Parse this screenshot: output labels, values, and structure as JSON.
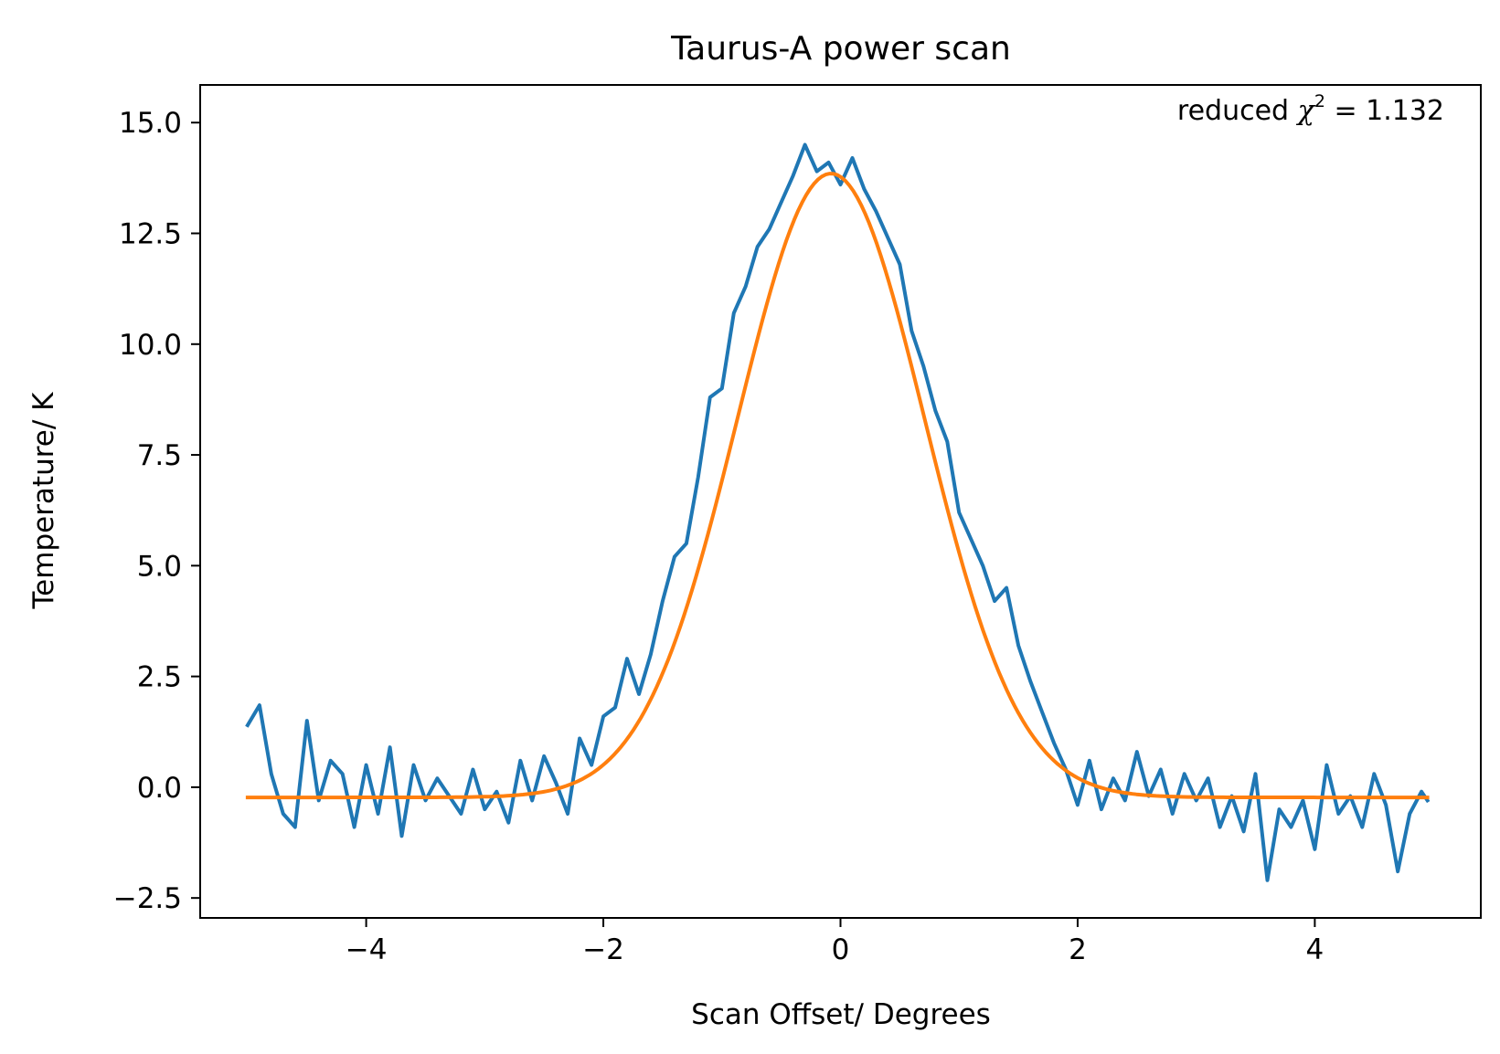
{
  "chart_data": {
    "type": "line",
    "title": "Taurus-A power scan",
    "xlabel": "Scan Offset/ Degrees",
    "ylabel": "Temperature/ K",
    "xlim": [
      -5.4,
      5.4
    ],
    "ylim": [
      -2.95,
      15.85
    ],
    "xticks": [
      -4,
      -2,
      0,
      2,
      4
    ],
    "xtick_labels": [
      "−4",
      "−2",
      "0",
      "2",
      "4"
    ],
    "yticks": [
      -2.5,
      0.0,
      2.5,
      5.0,
      7.5,
      10.0,
      12.5,
      15.0
    ],
    "ytick_labels": [
      "−2.5",
      "0.0",
      "2.5",
      "5.0",
      "7.5",
      "10.0",
      "12.5",
      "15.0"
    ],
    "grid": false,
    "annotation": {
      "prefix": "reduced ",
      "symbol": "χ",
      "superscript": "2",
      "suffix": " = 1.132",
      "color": "#008000",
      "placement": "top-right"
    },
    "series": [
      {
        "kind": "data",
        "color": "#1f77b4",
        "x": [
          -5.0,
          -4.9,
          -4.8,
          -4.7,
          -4.6,
          -4.5,
          -4.4,
          -4.3,
          -4.2,
          -4.1,
          -4.0,
          -3.9,
          -3.8,
          -3.7,
          -3.6,
          -3.5,
          -3.4,
          -3.3,
          -3.2,
          -3.1,
          -3.0,
          -2.9,
          -2.8,
          -2.7,
          -2.6,
          -2.5,
          -2.4,
          -2.3,
          -2.2,
          -2.1,
          -2.0,
          -1.9,
          -1.8,
          -1.7,
          -1.6,
          -1.5,
          -1.4,
          -1.3,
          -1.2,
          -1.1,
          -1.0,
          -0.9,
          -0.8,
          -0.7,
          -0.6,
          -0.5,
          -0.4,
          -0.3,
          -0.2,
          -0.1,
          0.0,
          0.1,
          0.2,
          0.3,
          0.4,
          0.5,
          0.6,
          0.7,
          0.8,
          0.9,
          1.0,
          1.1,
          1.2,
          1.3,
          1.4,
          1.5,
          1.6,
          1.7,
          1.8,
          1.9,
          2.0,
          2.1,
          2.2,
          2.3,
          2.4,
          2.5,
          2.6,
          2.7,
          2.8,
          2.9,
          3.0,
          3.1,
          3.2,
          3.3,
          3.4,
          3.5,
          3.6,
          3.7,
          3.8,
          3.9,
          4.0,
          4.1,
          4.2,
          4.3,
          4.4,
          4.5,
          4.6,
          4.7,
          4.8,
          4.9,
          4.95
        ],
        "y": [
          1.4,
          1.85,
          0.3,
          -0.6,
          -0.9,
          1.5,
          -0.3,
          0.6,
          0.3,
          -0.9,
          0.5,
          -0.6,
          0.9,
          -1.1,
          0.5,
          -0.3,
          0.2,
          -0.2,
          -0.6,
          0.4,
          -0.5,
          -0.1,
          -0.8,
          0.6,
          -0.3,
          0.7,
          0.1,
          -0.6,
          1.1,
          0.5,
          1.6,
          1.8,
          2.9,
          2.1,
          3.0,
          4.2,
          5.2,
          5.5,
          7.0,
          8.8,
          9.0,
          10.7,
          11.3,
          12.2,
          12.6,
          13.2,
          13.8,
          14.5,
          13.9,
          14.1,
          13.6,
          14.2,
          13.5,
          13.0,
          12.4,
          11.8,
          10.3,
          9.5,
          8.5,
          7.8,
          6.2,
          5.6,
          5.0,
          4.2,
          4.5,
          3.2,
          2.4,
          1.7,
          1.0,
          0.4,
          -0.4,
          0.6,
          -0.5,
          0.2,
          -0.3,
          0.8,
          -0.2,
          0.4,
          -0.6,
          0.3,
          -0.3,
          0.2,
          -0.9,
          -0.2,
          -1.0,
          0.3,
          -2.1,
          -0.5,
          -0.9,
          -0.3,
          -1.4,
          0.5,
          -0.6,
          -0.2,
          -0.9,
          0.3,
          -0.4,
          -1.9,
          -0.6,
          -0.1,
          -0.3
        ]
      },
      {
        "kind": "fit",
        "color": "#ff7f0e",
        "model": "gaussian",
        "amplitude": 14.08,
        "center": -0.08,
        "sigma": 0.79,
        "offset": -0.23,
        "x_range": [
          -5.0,
          4.95
        ]
      }
    ]
  }
}
